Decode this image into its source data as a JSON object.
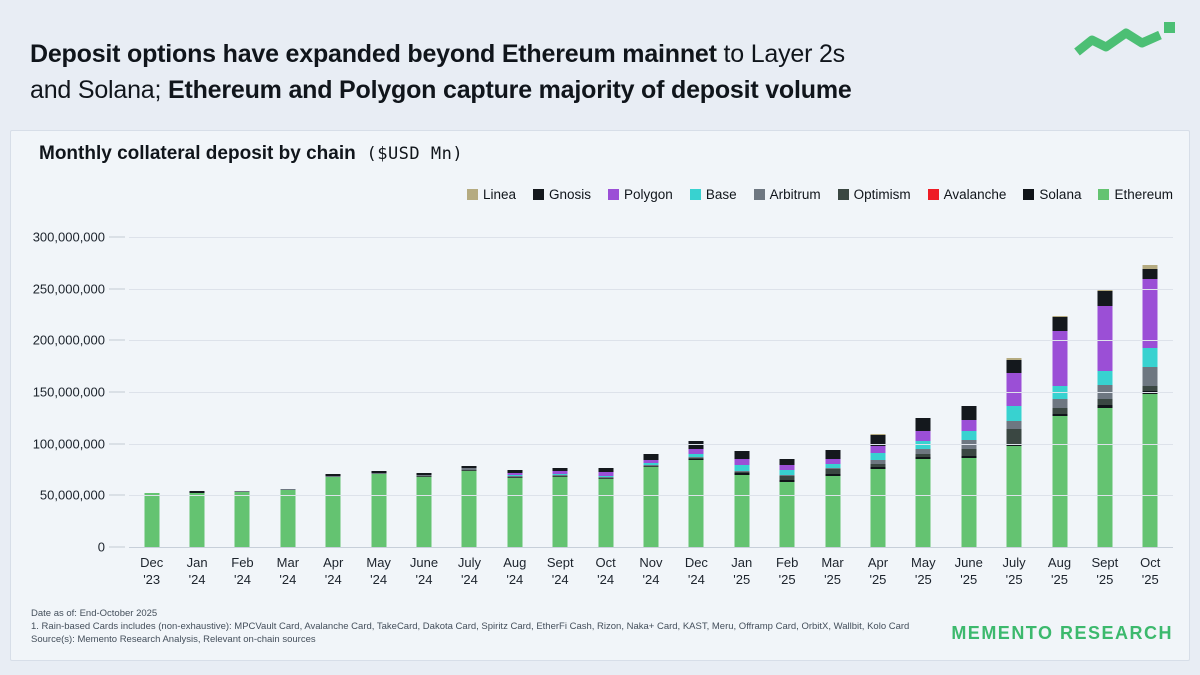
{
  "header": {
    "line1_bold": "Deposit options have expanded beyond Ethereum mainnet",
    "line1_regular": " to Layer 2s",
    "line2_regular": "and Solana; ",
    "line2_bold": "Ethereum and Polygon capture majority of deposit volume"
  },
  "card": {
    "title_bold": "Monthly collateral deposit by chain",
    "title_unit": " ($USD Mn)"
  },
  "footer": {
    "date_line": "Date as of: End-October 2025",
    "note_line": "1. Rain-based Cards includes (non-exhaustive):  MPCVault Card, Avalanche Card, TakeCard, Dakota Card, Spiritz Card, EtherFi Cash, Rizon, Naka+ Card, KAST, Meru, Offramp Card, OrbitX, Wallbit, Kolo Card",
    "source_line": "Source(s): Memento Research Analysis, Relevant on-chain sources"
  },
  "brand": {
    "name": "MEMENTO RESEARCH",
    "accent_color": "#3cb96d",
    "logo_color": "#4cbf74"
  },
  "chart_data": {
    "type": "bar",
    "stacked": true,
    "title": "Monthly collateral deposit by chain ($USD Mn)",
    "ylim": [
      0,
      300000000
    ],
    "grid": true,
    "legend_position": "top-right",
    "y_tick_labels": [
      "0",
      "50,000,000",
      "100,000,000",
      "150,000,000",
      "200,000,000",
      "250,000,000",
      "300,000,000"
    ],
    "y_tick_values": [
      0,
      50000000,
      100000000,
      150000000,
      200000000,
      250000000,
      300000000
    ],
    "categories": [
      {
        "month": "Dec",
        "year": "'23"
      },
      {
        "month": "Jan",
        "year": "'24"
      },
      {
        "month": "Feb",
        "year": "'24"
      },
      {
        "month": "Mar",
        "year": "'24"
      },
      {
        "month": "Apr",
        "year": "'24"
      },
      {
        "month": "May",
        "year": "'24"
      },
      {
        "month": "June",
        "year": "'24"
      },
      {
        "month": "July",
        "year": "'24"
      },
      {
        "month": "Aug",
        "year": "'24"
      },
      {
        "month": "Sept",
        "year": "'24"
      },
      {
        "month": "Oct",
        "year": "'24"
      },
      {
        "month": "Nov",
        "year": "'24"
      },
      {
        "month": "Dec",
        "year": "'24"
      },
      {
        "month": "Jan",
        "year": "'25"
      },
      {
        "month": "Feb",
        "year": "'25"
      },
      {
        "month": "Mar",
        "year": "'25"
      },
      {
        "month": "Apr",
        "year": "'25"
      },
      {
        "month": "May",
        "year": "'25"
      },
      {
        "month": "June",
        "year": "'25"
      },
      {
        "month": "July",
        "year": "'25"
      },
      {
        "month": "Aug",
        "year": "'25"
      },
      {
        "month": "Sept",
        "year": "'25"
      },
      {
        "month": "Oct",
        "year": "'25"
      }
    ],
    "stack_order_bottom_to_top": [
      "Ethereum",
      "Solana",
      "Avalanche",
      "Optimism",
      "Arbitrum",
      "Base",
      "Polygon",
      "Gnosis",
      "Linea"
    ],
    "series": [
      {
        "name": "Linea",
        "color": "#b5ab81",
        "values": [
          0,
          0,
          0,
          0,
          0,
          0,
          0,
          0,
          0,
          0,
          0,
          0,
          0,
          0,
          0,
          0,
          500000,
          500000,
          500000,
          1500000,
          1000000,
          1500000,
          4000000
        ]
      },
      {
        "name": "Gnosis",
        "color": "#14181d",
        "values": [
          0,
          1500000,
          0,
          0,
          2000000,
          2000000,
          2000000,
          2000000,
          3000000,
          3000000,
          4000000,
          6500000,
          8000000,
          7000000,
          6500000,
          8000000,
          11000000,
          12500000,
          13000000,
          13000000,
          14000000,
          14500000,
          10000000
        ]
      },
      {
        "name": "Polygon",
        "color": "#9b4fd6",
        "values": [
          0,
          0,
          0,
          0,
          0,
          0,
          0,
          0,
          2500000,
          3000000,
          3500000,
          3000000,
          5000000,
          6500000,
          4500000,
          5000000,
          6500000,
          9500000,
          11000000,
          32000000,
          53000000,
          63000000,
          66000000
        ]
      },
      {
        "name": "Base",
        "color": "#38d2d0",
        "values": [
          0,
          0,
          0,
          0,
          0,
          0,
          0,
          0,
          500000,
          500000,
          1000000,
          2000000,
          3000000,
          5000000,
          5000000,
          4000000,
          6500000,
          8000000,
          8000000,
          14000000,
          13000000,
          13000000,
          19000000
        ]
      },
      {
        "name": "Arbitrum",
        "color": "#6e7781",
        "values": [
          0,
          500000,
          1000000,
          1500000,
          1000000,
          1000000,
          1000000,
          1500000,
          1000000,
          1000000,
          1000000,
          1000000,
          1000000,
          1000000,
          1000000,
          1000000,
          4500000,
          4000000,
          9000000,
          8000000,
          8000000,
          14000000,
          18000000
        ]
      },
      {
        "name": "Optimism",
        "color": "#3a4742",
        "values": [
          0,
          0,
          0,
          0,
          0,
          0,
          1000000,
          1000000,
          1000000,
          1000000,
          1000000,
          1000000,
          1000000,
          1500000,
          4000000,
          5000000,
          2500000,
          3500000,
          7000000,
          14000000,
          6000000,
          6000000,
          5000000
        ]
      },
      {
        "name": "Avalanche",
        "color": "#ee1c25",
        "values": [
          0,
          0,
          0,
          0,
          0,
          0,
          0,
          0,
          0,
          0,
          0,
          0,
          0,
          0,
          0,
          0,
          0,
          0,
          0,
          0,
          0,
          0,
          0
        ]
      },
      {
        "name": "Solana",
        "color": "#101419",
        "values": [
          0,
          0,
          0,
          0,
          0,
          0,
          0,
          0,
          0,
          0,
          0,
          0,
          1000000,
          1500000,
          1500000,
          1500000,
          1500000,
          2000000,
          2000000,
          2000000,
          2000000,
          2000000,
          3000000
        ]
      },
      {
        "name": "Ethereum",
        "color": "#64c371",
        "values": [
          52000000,
          52000000,
          53000000,
          55000000,
          68000000,
          71000000,
          68000000,
          74000000,
          67000000,
          68000000,
          66000000,
          77000000,
          84000000,
          70000000,
          63000000,
          69000000,
          76000000,
          85000000,
          86000000,
          98000000,
          127000000,
          135000000,
          148000000
        ]
      }
    ]
  }
}
